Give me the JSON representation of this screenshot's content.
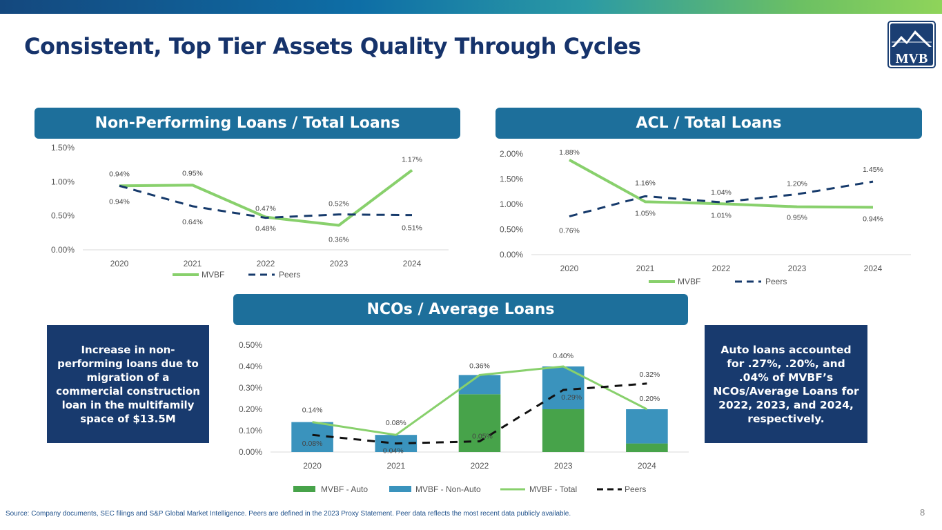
{
  "title": "Consistent, Top Tier Assets Quality Through Cycles",
  "logo_text": "MVB",
  "colors": {
    "mvbf": "#88d06c",
    "peers": "#163a6b",
    "auto": "#47a34a",
    "nonauto": "#3a93bd",
    "header": "#1d6f9b",
    "callout": "#183a6e"
  },
  "headers": {
    "npl": "Non-Performing Loans / Total Loans",
    "acl": "ACL / Total Loans",
    "nco": "NCOs / Average Loans"
  },
  "callouts": {
    "left": "Increase in non-performing loans due to migration of a commercial construction loan in the multifamily space of $13.5M",
    "right": "Auto loans accounted for .27%, .20%, and .04% of MVBF’s NCOs/Average Loans for 2022, 2023, and 2024, respectively."
  },
  "source": "Source: Company documents, SEC filings and S&P Global Market Intelligence. Peers are defined in the 2023 Proxy Statement. Peer data reflects the most recent data publicly available.",
  "page_number": "8",
  "chart_data": [
    {
      "id": "npl",
      "type": "line",
      "title": "Non-Performing Loans / Total Loans",
      "categories": [
        "2020",
        "2021",
        "2022",
        "2023",
        "2024"
      ],
      "ylim": [
        0,
        1.5
      ],
      "yticks": [
        "0.00%",
        "0.50%",
        "1.00%",
        "1.50%"
      ],
      "yticks_values": [
        0,
        0.5,
        1.0,
        1.5
      ],
      "series": [
        {
          "name": "MVBF",
          "values": [
            0.94,
            0.95,
            0.48,
            0.36,
            1.17
          ],
          "labels": [
            "0.94%",
            "0.95%",
            "0.48%",
            "0.36%",
            "1.17%"
          ]
        },
        {
          "name": "Peers",
          "values": [
            0.94,
            0.64,
            0.47,
            0.52,
            0.51
          ],
          "labels": [
            "0.94%",
            "0.64%",
            "0.47%",
            "0.52%",
            "0.51%"
          ]
        }
      ]
    },
    {
      "id": "acl",
      "type": "line",
      "title": "ACL / Total Loans",
      "categories": [
        "2020",
        "2021",
        "2022",
        "2023",
        "2024"
      ],
      "ylim": [
        0,
        2.0
      ],
      "yticks": [
        "0.00%",
        "0.50%",
        "1.00%",
        "1.50%",
        "2.00%"
      ],
      "yticks_values": [
        0,
        0.5,
        1.0,
        1.5,
        2.0
      ],
      "series": [
        {
          "name": "MVBF",
          "values": [
            1.88,
            1.05,
            1.01,
            0.95,
            0.94
          ],
          "labels": [
            "1.88%",
            "1.05%",
            "1.01%",
            "0.95%",
            "0.94%"
          ]
        },
        {
          "name": "Peers",
          "values": [
            0.76,
            1.16,
            1.04,
            1.2,
            1.45
          ],
          "labels": [
            "0.76%",
            "1.16%",
            "1.04%",
            "1.20%",
            "1.45%"
          ]
        }
      ]
    },
    {
      "id": "nco",
      "type": "bar",
      "title": "NCOs / Average Loans",
      "categories": [
        "2020",
        "2021",
        "2022",
        "2023",
        "2024"
      ],
      "ylim": [
        0,
        0.5
      ],
      "yticks": [
        "0.00%",
        "0.10%",
        "0.20%",
        "0.30%",
        "0.40%",
        "0.50%"
      ],
      "yticks_values": [
        0,
        0.1,
        0.2,
        0.3,
        0.4,
        0.5
      ],
      "series": [
        {
          "name": "MVBF - Auto",
          "values": [
            0,
            0,
            0.27,
            0.2,
            0.04
          ]
        },
        {
          "name": "MVBF - Non-Auto",
          "values": [
            0.14,
            0.08,
            0.09,
            0.2,
            0.16
          ]
        },
        {
          "name": "MVBF - Total",
          "values": [
            0.14,
            0.08,
            0.36,
            0.4,
            0.2
          ],
          "labels": [
            "0.14%",
            "0.08%",
            "0.36%",
            "0.40%",
            "0.20%"
          ]
        },
        {
          "name": "Peers",
          "values": [
            0.08,
            0.04,
            0.05,
            0.29,
            0.32
          ],
          "labels": [
            "0.08%",
            "0.04%",
            "0.05%",
            "0.29%",
            "0.32%"
          ]
        }
      ]
    }
  ]
}
